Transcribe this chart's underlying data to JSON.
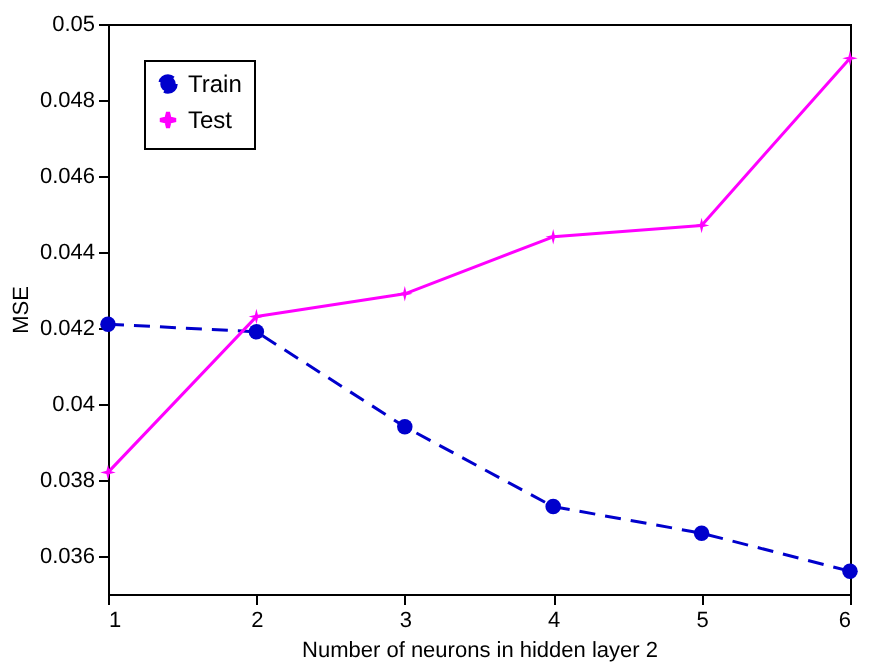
{
  "chart_data": {
    "type": "line",
    "xlabel": "Number of neurons in hidden layer 2",
    "ylabel": "MSE",
    "x": [
      1,
      2,
      3,
      4,
      5,
      6
    ],
    "series": [
      {
        "name": "Train",
        "color": "#0000cc",
        "marker": "circle",
        "line_style": "dashed",
        "values": [
          0.0421,
          0.0419,
          0.0394,
          0.0373,
          0.0366,
          0.0356
        ]
      },
      {
        "name": "Test",
        "color": "#ff00ff",
        "marker": "star",
        "line_style": "solid",
        "values": [
          0.0382,
          0.0423,
          0.0429,
          0.0444,
          0.0447,
          0.0491
        ]
      }
    ],
    "xlim": [
      1,
      6
    ],
    "xticks": [
      1,
      2,
      3,
      4,
      5,
      6
    ],
    "ylim": [
      0.035,
      0.05
    ],
    "yticks": [
      0.036,
      0.038,
      0.04,
      0.042,
      0.044,
      0.046,
      0.048,
      0.05
    ],
    "grid": false,
    "legend": "top left"
  }
}
